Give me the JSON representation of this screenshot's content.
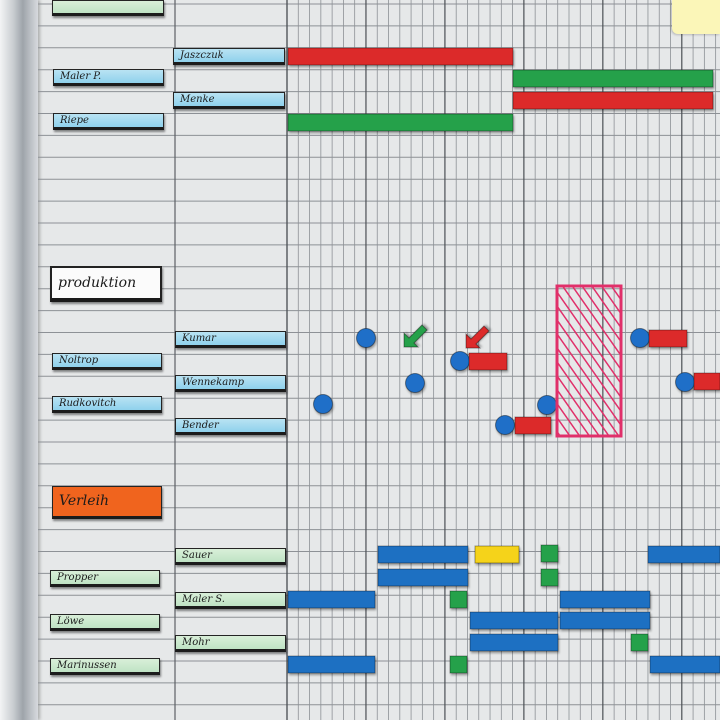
{
  "board": {
    "group_labels": [
      {
        "text": "produktion"
      },
      {
        "text": "Verleih"
      }
    ],
    "col1_labels": [
      {
        "text": "Maler P."
      },
      {
        "text": "Riepe"
      },
      {
        "text": "Noltrop"
      },
      {
        "text": "Rudkovitch"
      },
      {
        "text": "Propper"
      },
      {
        "text": "Löwe"
      },
      {
        "text": "Marinussen"
      }
    ],
    "col2_labels": [
      {
        "text": "Jaszczuk"
      },
      {
        "text": "Menke"
      },
      {
        "text": "Kumar"
      },
      {
        "text": "Wennekamp"
      },
      {
        "text": "Bender"
      },
      {
        "text": "Sauer"
      },
      {
        "text": "Maler S."
      },
      {
        "text": "Mohr"
      }
    ],
    "colors": {
      "red": "#dc2a2a",
      "green": "#25a14a",
      "blue": "#1d70c2",
      "yellow": "#f5d31a",
      "orange": "#f0641e",
      "pink": "#e0306a",
      "lightblue": "#9ed7ee",
      "mint": "#cfe9d0"
    }
  }
}
